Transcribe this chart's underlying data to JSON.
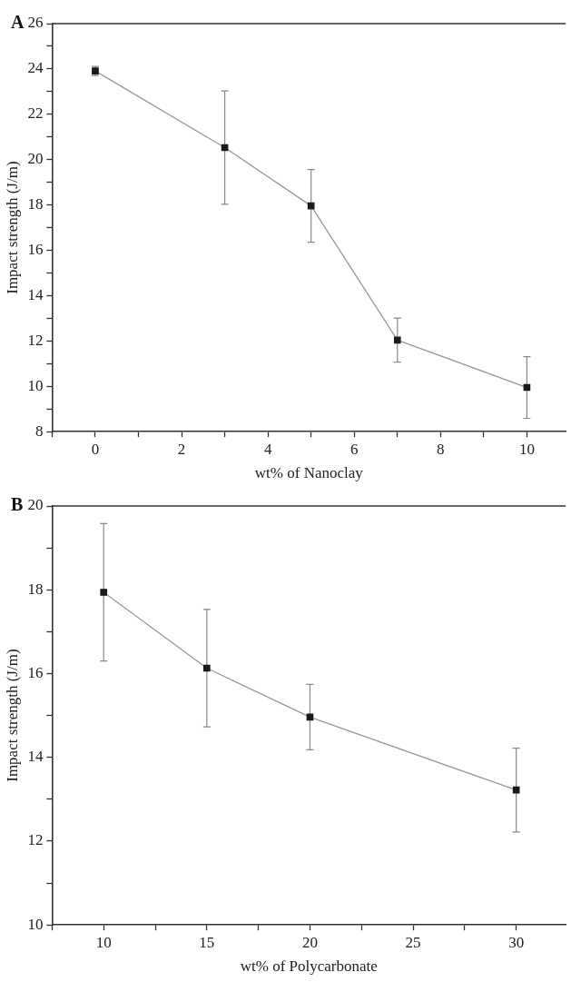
{
  "chart_data": [
    {
      "type": "line",
      "title": "A",
      "xlabel": "wt% of Nanoclay",
      "ylabel": "Impact strength (J/m)",
      "x": [
        0,
        3,
        5,
        7,
        10
      ],
      "series": [
        {
          "color": "#1a1a1a",
          "values": [
            23.91,
            20.53,
            17.96,
            12.04,
            9.95
          ],
          "errors": [
            0.2,
            2.5,
            1.6,
            0.97,
            1.36
          ]
        }
      ],
      "xlim": [
        -1,
        10.9
      ],
      "xticks": [
        {
          "value": -1,
          "label": null
        },
        0,
        {
          "value": 1,
          "label": null
        },
        2,
        {
          "value": 3,
          "label": null
        },
        4,
        {
          "value": 5,
          "label": null
        },
        6,
        {
          "value": 7,
          "label": null
        },
        8,
        {
          "value": 9,
          "label": null
        },
        10
      ],
      "ylim": [
        8,
        26
      ],
      "yticks": [
        8,
        {
          "value": 9,
          "label": null
        },
        10,
        {
          "value": 11,
          "label": null
        },
        12,
        {
          "value": 13,
          "label": null
        },
        14,
        {
          "value": 15,
          "label": null
        },
        16,
        {
          "value": 17,
          "label": null
        },
        18,
        {
          "value": 19,
          "label": null
        },
        20,
        {
          "value": 21,
          "label": null
        },
        22,
        {
          "value": 23,
          "label": null
        },
        24,
        {
          "value": 25,
          "label": null
        },
        26
      ],
      "marker": "square",
      "line_style": "solid",
      "grid": false,
      "legend": false
    },
    {
      "type": "line",
      "title": "B",
      "xlabel": "wt% of Polycarbonate",
      "ylabel": "Impact strength (J/m)",
      "x": [
        10,
        15,
        20,
        30
      ],
      "series": [
        {
          "color": "#1a1a1a",
          "values": [
            17.94,
            16.13,
            14.96,
            13.22
          ],
          "errors": [
            1.64,
            1.4,
            0.78,
            1.0
          ]
        }
      ],
      "xlim": [
        7.5,
        32.4
      ],
      "xticks": [
        {
          "value": 7.5,
          "label": null
        },
        10,
        {
          "value": 12.5,
          "label": null
        },
        15,
        {
          "value": 17.5,
          "label": null
        },
        20,
        {
          "value": 22.5,
          "label": null
        },
        25,
        {
          "value": 27.5,
          "label": null
        },
        30
      ],
      "ylim": [
        10,
        20
      ],
      "yticks": [
        10,
        {
          "value": 11,
          "label": null
        },
        12,
        {
          "value": 13,
          "label": null
        },
        14,
        {
          "value": 15,
          "label": null
        },
        16,
        {
          "value": 17,
          "label": null
        },
        18,
        {
          "value": 19,
          "label": null
        },
        20
      ],
      "marker": "square",
      "line_style": "solid",
      "grid": false,
      "legend": false
    }
  ]
}
